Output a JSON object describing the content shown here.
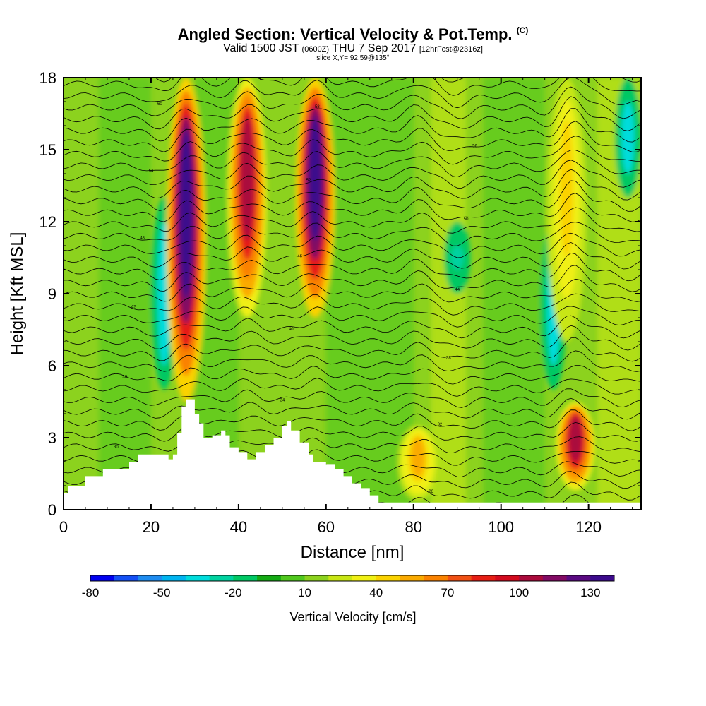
{
  "chart_data": {
    "type": "heatmap",
    "title": "Angled Section: Vertical Velocity & Pot.Temp.",
    "title_tag": "(C)",
    "subtitle_valid": "Valid 1500 JST",
    "subtitle_zulu": "(0600Z)",
    "subtitle_date": "THU 7 Sep 2017",
    "subtitle_fcst": "[12hrFcst@2316z]",
    "slice_text": "slice X,Y= 92,59@135°",
    "xlabel": "Distance [nm]",
    "ylabel": "Height [Kft MSL]",
    "xlim": [
      0,
      132
    ],
    "ylim": [
      0,
      18
    ],
    "x_ticks": [
      0,
      20,
      40,
      60,
      80,
      100,
      120
    ],
    "y_ticks": [
      0,
      3,
      6,
      9,
      12,
      15,
      18
    ],
    "colorbar": {
      "label": "Vertical Velocity [cm/s]",
      "tick_labels": [
        -80,
        -50,
        -20,
        10,
        40,
        70,
        100,
        130
      ],
      "min": -80,
      "max": 140,
      "step": 10,
      "colors": [
        "#0000f0",
        "#1450f5",
        "#1e8cf0",
        "#00b4f0",
        "#00dcdc",
        "#00d2a0",
        "#00c864",
        "#14aa14",
        "#50c81e",
        "#8cd21e",
        "#c8e614",
        "#f0f014",
        "#fad200",
        "#faaa00",
        "#fa8200",
        "#f05014",
        "#e61e14",
        "#d20a1e",
        "#aa0a3c",
        "#820a64",
        "#5a0a82",
        "#3c0a8c"
      ]
    },
    "updrafts": [
      {
        "x": 28,
        "y_bottom": 4.5,
        "y_top": 18,
        "peak_cm_s": 135
      },
      {
        "x": 42,
        "y_bottom": 8,
        "y_top": 18,
        "peak_cm_s": 100
      },
      {
        "x": 57.5,
        "y_bottom": 8,
        "y_top": 18,
        "peak_cm_s": 135
      },
      {
        "x": 81,
        "y_bottom": 0.4,
        "y_top": 3.5,
        "peak_cm_s": 50
      },
      {
        "x": 117,
        "y_bottom": 0.8,
        "y_top": 4.5,
        "peak_cm_s": 100
      },
      {
        "x": 115,
        "y_bottom": 7,
        "y_top": 18,
        "peak_cm_s": 40
      }
    ],
    "downdrafts": [
      {
        "x": 23,
        "y_bottom": 5,
        "y_top": 13,
        "min_cm_s": -40
      },
      {
        "x": 90,
        "y_bottom": 9,
        "y_top": 12,
        "min_cm_s": -30
      },
      {
        "x": 112,
        "y_bottom": 5,
        "y_top": 12,
        "min_cm_s": -40
      },
      {
        "x": 129,
        "y_bottom": 13,
        "y_top": 18,
        "min_cm_s": -40
      }
    ],
    "theta_contours": {
      "min": 24,
      "max": 64,
      "interval": 1,
      "label_interval": 2,
      "color": "#000000"
    },
    "terrain": {
      "fill_color": "#ffffff",
      "x": [
        0,
        1,
        5,
        9,
        13,
        15,
        17,
        19,
        21,
        23,
        24,
        25,
        26,
        27,
        28,
        29,
        30,
        31,
        32,
        34,
        36,
        37,
        38,
        40,
        42,
        44,
        46,
        48,
        50,
        51,
        52,
        54,
        56,
        57,
        58,
        60,
        62,
        64,
        66,
        68,
        70,
        72,
        132
      ],
      "height": [
        0.7,
        1.0,
        1.4,
        1.7,
        1.7,
        2.0,
        2.3,
        2.3,
        2.3,
        2.3,
        2.1,
        2.3,
        3.2,
        4.3,
        4.6,
        4.6,
        4.0,
        3.6,
        3.0,
        3.1,
        3.3,
        3.1,
        2.6,
        2.4,
        2.1,
        2.4,
        2.7,
        3.0,
        3.5,
        3.7,
        3.3,
        2.8,
        2.3,
        2.0,
        2.0,
        1.9,
        1.7,
        1.4,
        1.1,
        0.9,
        0.6,
        0.3,
        0.3
      ]
    }
  }
}
